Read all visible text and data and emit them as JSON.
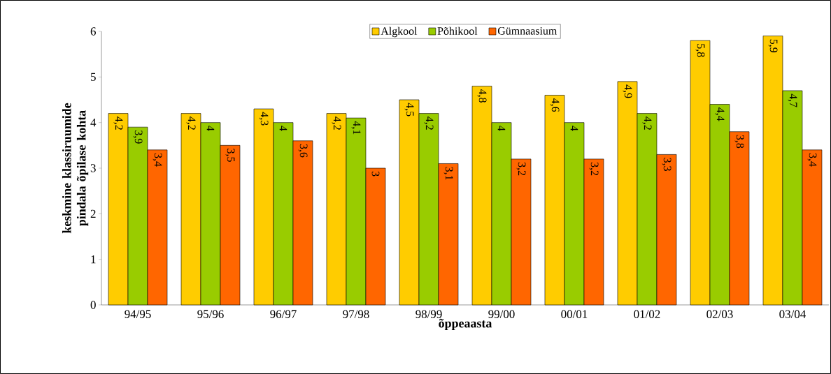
{
  "chart_data": {
    "type": "bar",
    "xlabel": "õppeaasta",
    "ylabel": "keskmine klassiruumide pindala õpilase kohta",
    "categories": [
      "94/95",
      "95/96",
      "96/97",
      "97/98",
      "98/99",
      "99/00",
      "00/01",
      "01/02",
      "02/03",
      "03/04"
    ],
    "series": [
      {
        "name": "Algkool",
        "color": "#ffcc00",
        "values": [
          4.2,
          4.2,
          4.3,
          4.2,
          4.5,
          4.8,
          4.6,
          4.9,
          5.8,
          5.9
        ],
        "value_labels": [
          "4,2",
          "4,2",
          "4,3",
          "4,2",
          "4,5",
          "4,8",
          "4,6",
          "4,9",
          "5,8",
          "5,9"
        ]
      },
      {
        "name": "Põhikool",
        "color": "#99cc00",
        "values": [
          3.9,
          4,
          4,
          4.1,
          4.2,
          4,
          4,
          4.2,
          4.4,
          4.7
        ],
        "value_labels": [
          "3,9",
          "4",
          "4",
          "4,1",
          "4,2",
          "4",
          "4",
          "4,2",
          "4,4",
          "4,7"
        ]
      },
      {
        "name": "Gümnaasium",
        "color": "#ff6600",
        "values": [
          3.4,
          3.5,
          3.6,
          3,
          3.1,
          3.2,
          3.2,
          3.3,
          3.8,
          3.4
        ],
        "value_labels": [
          "3,4",
          "3,5",
          "3,6",
          "3",
          "3,1",
          "3,2",
          "3,2",
          "3,3",
          "3,8",
          "3,4"
        ]
      }
    ],
    "ylim": [
      0,
      6
    ],
    "yticks": [
      0,
      1,
      2,
      3,
      4,
      5,
      6
    ],
    "grid": false,
    "legend": "top"
  }
}
